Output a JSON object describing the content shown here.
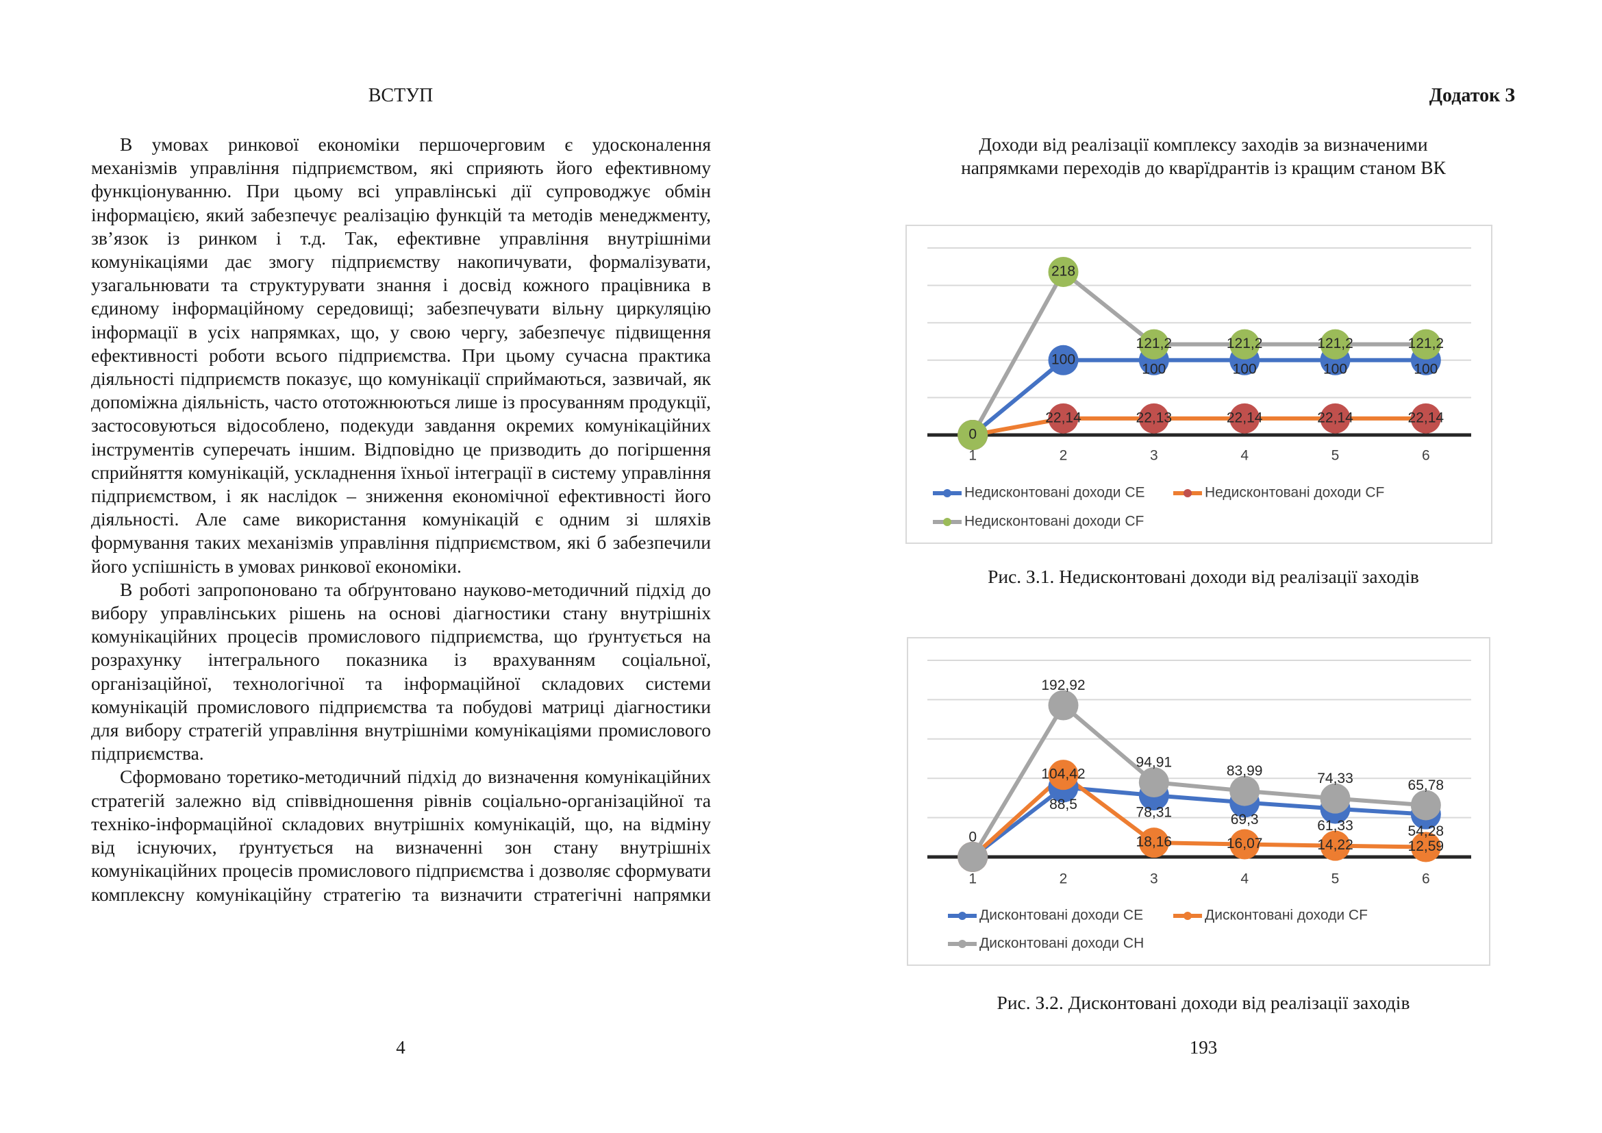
{
  "left_page": {
    "title": "ВСТУП",
    "paragraphs": [
      "В умовах ринкової економіки першочерговим є удосконалення механізмів управління підприємством, які сприяють його ефективному функціонуванню. При цьому всі управлінські дії супроводжує обмін інформацією, який забезпечує реалізацію функцій та методів менеджменту, зв’язок із ринком і т.д. Так, ефективне управління внутрішніми комунікаціями дає змогу підприємству накопичувати, формалізувати, узагальнювати та структурувати знання і досвід кожного працівника в єдиному інформаційному середовищі; забезпечувати вільну циркуляцію інформації в усіх напрямках, що, у свою чергу, забезпечує підвищення ефективності роботи всього підприємства. При цьому сучасна практика діяльності підприємств показує, що комунікації сприймаються, зазвичай, як допоміжна діяльність, часто ототожнюються лише із просуванням продукції, застосовуються відособлено, подекуди завдання окремих комунікаційних інструментів суперечать іншим. Відповідно це призводить до погіршення сприйняття комунікацій, ускладнення їхньої інтеграції в систему управління підприємством, і як наслідок – зниження економічної ефективності його діяльності. Але саме використання комунікацій є одним зі шляхів формування таких механізмів управління підприємством, які б забезпечили його успішність в умовах ринкової економіки.",
      "В роботі запропоновано та обґрунтовано науково-методичний підхід до вибору управлінських рішень на основі діагностики стану внутрішніх комунікаційних процесів промислового підприємства, що ґрунтується на розрахунку інтегрального показника із врахуванням соціальної, організаційної, технологічної та інформаційної складових системи комунікацій промислового підприємства та побудові матриці діагностики для вибору стратегій управління внутрішніми комунікаціями промислового підприємства.",
      "Сформовано торетико-методичний підхід до визначення комунікаційних стратегій залежно від співвідношення рівнів соціально-організаційної та техніко-інформаційної складових внутрішніх комунікацій, що, на відміну від існуючих, ґрунтується на визначенні зон стану внутрішніх комунікаційних процесів промислового підприємства і дозволяє сформувати комплексну комунікаційну стратегію та визначити стратегічні напрямки"
    ],
    "page_number": 4
  },
  "right_page": {
    "appendix": "Додаток З",
    "heading": [
      "Доходи від реалізації комплексу заходів за визначеними",
      "напрямками переходів до кварїдрантів із кращим станом ВК"
    ],
    "page_number": 193
  },
  "chart_data": [
    {
      "type": "line",
      "caption": "Рис. З.1. Недисконтовані доходи від реалізації заходів",
      "categories": [
        1,
        2,
        3,
        4,
        5,
        6
      ],
      "ylim": [
        0,
        250
      ],
      "yticks": [
        0,
        50,
        100,
        150,
        200,
        250
      ],
      "grid": true,
      "tick_labels": false,
      "series": [
        {
          "name": "Недисконтовані доходи CE",
          "color": "#4472c4",
          "marker_color": "#4472c4",
          "values": [
            0,
            100,
            100,
            100,
            100,
            100
          ],
          "value_labels": [
            null,
            "100",
            "100",
            "100",
            "100",
            "100"
          ]
        },
        {
          "name": "Недисконтовані доходи CF",
          "color": "#ed7d31",
          "marker_color": "#c0504d",
          "values": [
            0,
            22.14,
            22.13,
            22.14,
            22.14,
            22.14
          ],
          "value_labels": [
            null,
            "22,14",
            "22,13",
            "22,14",
            "22,14",
            "22,14"
          ]
        },
        {
          "name": "Недисконтовані доходи CF",
          "color": "#a5a5a5",
          "marker_color": "#9bbb59",
          "values": [
            0,
            218,
            121.2,
            121.2,
            121.2,
            121.2
          ],
          "value_labels": [
            "0",
            "218",
            "121,2",
            "121,2",
            "121,2",
            "121,2"
          ]
        }
      ]
    },
    {
      "type": "line",
      "caption": "Рис. З.2. Дисконтовані доходи від реалізації заходів",
      "categories": [
        1,
        2,
        3,
        4,
        5,
        6
      ],
      "ylim": [
        0,
        250
      ],
      "yticks": [
        0,
        50,
        100,
        150,
        200,
        250
      ],
      "grid": true,
      "tick_labels": false,
      "series": [
        {
          "name": "Дисконтовані доходи CE",
          "color": "#4472c4",
          "marker_color": "#4472c4",
          "values": [
            0,
            88.5,
            78.31,
            69.3,
            61.33,
            54.28
          ],
          "value_labels": [
            null,
            "88,5",
            "78,31",
            "69,3",
            "61,33",
            "54,28"
          ]
        },
        {
          "name": "Дисконтовані доходи CF",
          "color": "#ed7d31",
          "marker_color": "#ed7d31",
          "values": [
            0,
            104.42,
            18.16,
            16.07,
            14.22,
            12.59
          ],
          "value_labels": [
            null,
            "104,42",
            "18,16",
            "16,07",
            "14,22",
            "12,59"
          ]
        },
        {
          "name": "Дисконтовані доходи CH",
          "color": "#a5a5a5",
          "marker_color": "#a5a5a5",
          "values": [
            0,
            192.92,
            94.91,
            83.99,
            74.33,
            65.78
          ],
          "value_labels": [
            "0",
            "192,92",
            "94,91",
            "83,99",
            "74,33",
            "65,78"
          ]
        }
      ]
    }
  ]
}
